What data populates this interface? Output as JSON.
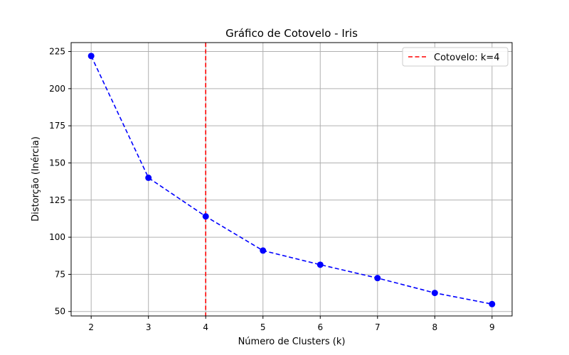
{
  "chart_data": {
    "type": "line",
    "title": "Gráfico de Cotovelo - Iris",
    "xlabel": "Número de Clusters (k)",
    "ylabel": "Distorção (Inércia)",
    "x": [
      2,
      3,
      4,
      5,
      6,
      7,
      8,
      9
    ],
    "xlim": [
      1.65,
      9.35
    ],
    "ylim": [
      47,
      231
    ],
    "xticks": [
      "2",
      "3",
      "4",
      "5",
      "6",
      "7",
      "8",
      "9"
    ],
    "yticks": [
      "50",
      "75",
      "100",
      "125",
      "150",
      "175",
      "200",
      "225"
    ],
    "grid": true,
    "legend_position": "top-right",
    "series": [
      {
        "values": [
          222,
          140,
          114,
          91,
          81.5,
          72.5,
          62.5,
          55
        ],
        "color": "#0000ff",
        "line_style": "dashed",
        "marker": "circle"
      }
    ],
    "reference_lines": [
      {
        "orientation": "vertical",
        "x": 4,
        "name": "Cotovelo: k=4",
        "color": "#ff0000",
        "line_style": "dashed"
      }
    ]
  }
}
